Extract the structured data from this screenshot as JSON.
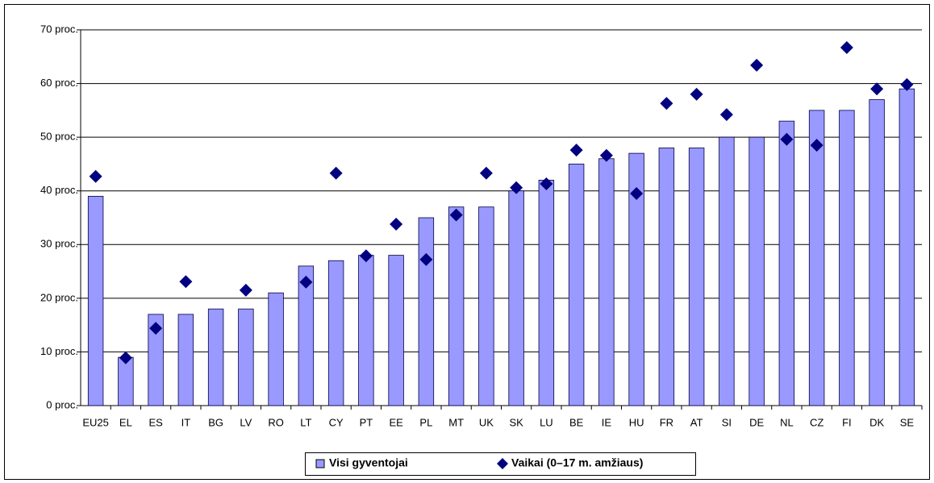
{
  "chart_data": {
    "type": "bar",
    "categories": [
      "EU25",
      "EL",
      "ES",
      "IT",
      "BG",
      "LV",
      "RO",
      "LT",
      "CY",
      "PT",
      "EE",
      "PL",
      "MT",
      "UK",
      "SK",
      "LU",
      "BE",
      "IE",
      "HU",
      "FR",
      "AT",
      "SI",
      "DE",
      "NL",
      "CZ",
      "FI",
      "DK",
      "SE"
    ],
    "series": [
      {
        "name": "Visi gyventojai",
        "type": "bar",
        "color": "#9999ff",
        "values": [
          39,
          9,
          17,
          17,
          18,
          18,
          21,
          26,
          27,
          28,
          28,
          35,
          37,
          37,
          40,
          42,
          45,
          46,
          47,
          48,
          48,
          50,
          50,
          53,
          55,
          55,
          57,
          59
        ]
      },
      {
        "name": "Vaikai (0–17 m. amžiaus)",
        "type": "scatter",
        "color": "#000080",
        "values": [
          42.7,
          8.9,
          14.4,
          23.1,
          null,
          21.5,
          null,
          23,
          43.3,
          27.9,
          33.8,
          27.2,
          35.5,
          43.3,
          40.6,
          41.3,
          47.6,
          46.6,
          39.5,
          56.3,
          58,
          54.2,
          63.4,
          49.6,
          48.5,
          66.7,
          59,
          59.8
        ]
      }
    ],
    "ylim": [
      0,
      70
    ],
    "yticks": [
      {
        "value": 0,
        "label": "0 proc."
      },
      {
        "value": 10,
        "label": "10 proc."
      },
      {
        "value": 20,
        "label": "20 proc."
      },
      {
        "value": 30,
        "label": "30 proc."
      },
      {
        "value": 40,
        "label": "40 proc."
      },
      {
        "value": 50,
        "label": "50 proc."
      },
      {
        "value": 60,
        "label": "60 proc."
      },
      {
        "value": 70,
        "label": "70 proc."
      }
    ],
    "grid": true,
    "legend": "bottom"
  }
}
